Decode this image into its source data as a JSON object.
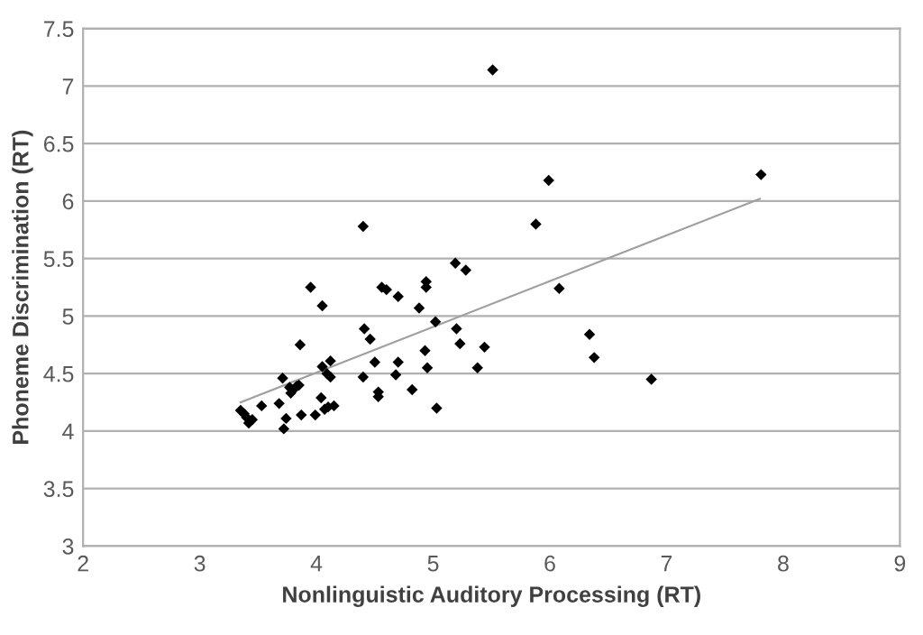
{
  "chart_data": {
    "type": "scatter",
    "xlabel": "Nonlinguistic Auditory Processing (RT)",
    "ylabel": "Phoneme Discrimination (RT)",
    "xlim": [
      2,
      9
    ],
    "xticks": [
      2,
      3,
      4,
      5,
      6,
      7,
      8,
      9
    ],
    "ylim": [
      3,
      7.5
    ],
    "yticks": [
      3,
      {
        "value": 3.5,
        "label": "3.5"
      },
      4,
      {
        "value": 4.5,
        "label": "4.5"
      },
      5,
      {
        "value": 5.5,
        "label": "5.5"
      },
      6,
      {
        "value": 6.5,
        "label": "6.5"
      },
      7,
      {
        "value": 7.5,
        "label": "7.5"
      }
    ],
    "grid": "y",
    "legend": false,
    "series": [
      {
        "color": "#000000",
        "marker": "diamond",
        "x": [
          3.35,
          3.38,
          3.4,
          3.42,
          3.45,
          3.53,
          3.68,
          3.71,
          3.72,
          3.74,
          3.77,
          3.78,
          3.8,
          3.83,
          3.85,
          3.86,
          3.87,
          3.95,
          3.99,
          4.04,
          4.05,
          4.05,
          4.07,
          4.09,
          4.1,
          4.12,
          4.12,
          4.15,
          4.4,
          4.4,
          4.41,
          4.46,
          4.5,
          4.53,
          4.53,
          4.56,
          4.6,
          4.68,
          4.7,
          4.7,
          4.82,
          4.88,
          4.93,
          4.94,
          4.94,
          4.95,
          5.02,
          5.03,
          5.19,
          5.2,
          5.23,
          5.28,
          5.38,
          5.44,
          5.51,
          5.88,
          5.99,
          6.08,
          6.34,
          6.38,
          6.87,
          7.81
        ],
        "values": [
          4.18,
          4.15,
          4.12,
          4.07,
          4.1,
          4.22,
          4.24,
          4.46,
          4.02,
          4.11,
          4.38,
          4.33,
          4.36,
          4.39,
          4.4,
          4.75,
          4.14,
          5.25,
          4.14,
          4.29,
          4.56,
          5.09,
          4.19,
          4.5,
          4.21,
          4.47,
          4.61,
          4.22,
          5.78,
          4.47,
          4.89,
          4.8,
          4.6,
          4.34,
          4.3,
          5.25,
          5.23,
          4.49,
          5.17,
          4.6,
          4.36,
          5.07,
          4.7,
          5.3,
          5.25,
          4.55,
          4.95,
          4.2,
          5.46,
          4.89,
          4.76,
          5.4,
          4.55,
          4.73,
          7.14,
          5.8,
          6.18,
          5.24,
          4.84,
          4.64,
          4.45,
          6.23
        ]
      },
      {
        "type": "line",
        "color": "#a0a0a0",
        "marker": "none",
        "line_style": "solid",
        "x": [
          3.35,
          7.8
        ],
        "values": [
          4.25,
          6.02
        ]
      }
    ]
  }
}
